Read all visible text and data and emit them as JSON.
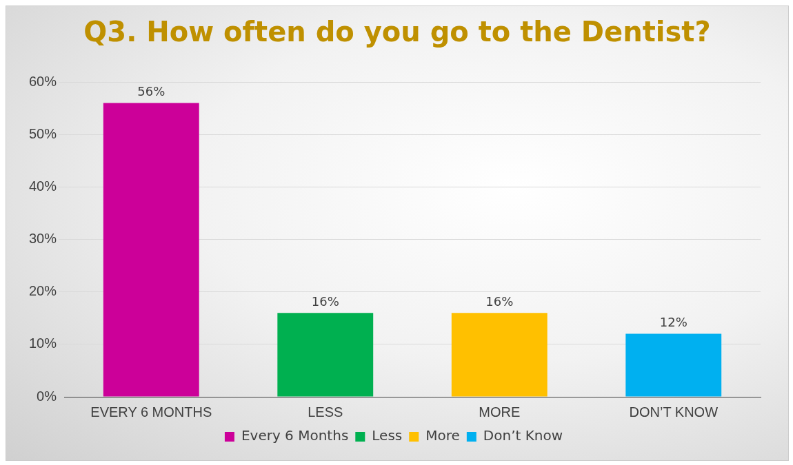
{
  "chart_data": {
    "type": "bar",
    "title": "Q3. How often do you go to the Dentist?",
    "categories": [
      "EVERY 6 MONTHS",
      "LESS",
      "MORE",
      "DON’T KNOW"
    ],
    "series": [
      {
        "name": "Every 6 Months",
        "color": "#cc0099",
        "values": [
          56,
          null,
          null,
          null
        ],
        "value_labels": [
          "56%",
          null,
          null,
          null
        ]
      },
      {
        "name": "Less",
        "color": "#00b050",
        "values": [
          null,
          16,
          null,
          null
        ],
        "value_labels": [
          null,
          "16%",
          null,
          null
        ]
      },
      {
        "name": "More",
        "color": "#ffc000",
        "values": [
          null,
          null,
          16,
          null
        ],
        "value_labels": [
          null,
          null,
          "16%",
          null
        ]
      },
      {
        "name": "Don’t Know",
        "color": "#00b0f0",
        "values": [
          null,
          null,
          null,
          12
        ],
        "value_labels": [
          null,
          null,
          null,
          "12%"
        ]
      }
    ],
    "ylim": [
      0,
      60
    ],
    "yticks": [
      {
        "value": 0,
        "label": "0%"
      },
      {
        "value": 10,
        "label": "10%"
      },
      {
        "value": 20,
        "label": "20%"
      },
      {
        "value": 30,
        "label": "30%"
      },
      {
        "value": 40,
        "label": "40%"
      },
      {
        "value": 50,
        "label": "50%"
      },
      {
        "value": 60,
        "label": "60%"
      }
    ],
    "grid": "y",
    "legend": "bottom"
  }
}
